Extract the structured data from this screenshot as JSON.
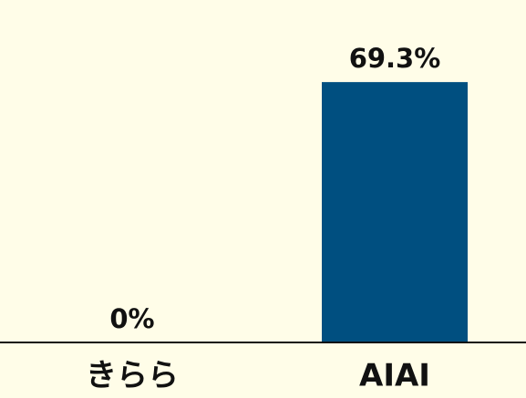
{
  "chart_data": {
    "type": "bar",
    "categories": [
      "きらら",
      "AIAI"
    ],
    "values": [
      0,
      69.3
    ],
    "value_labels": [
      "0%",
      "69.3%"
    ],
    "color": "#004f80",
    "ylim": [
      0,
      80
    ]
  }
}
